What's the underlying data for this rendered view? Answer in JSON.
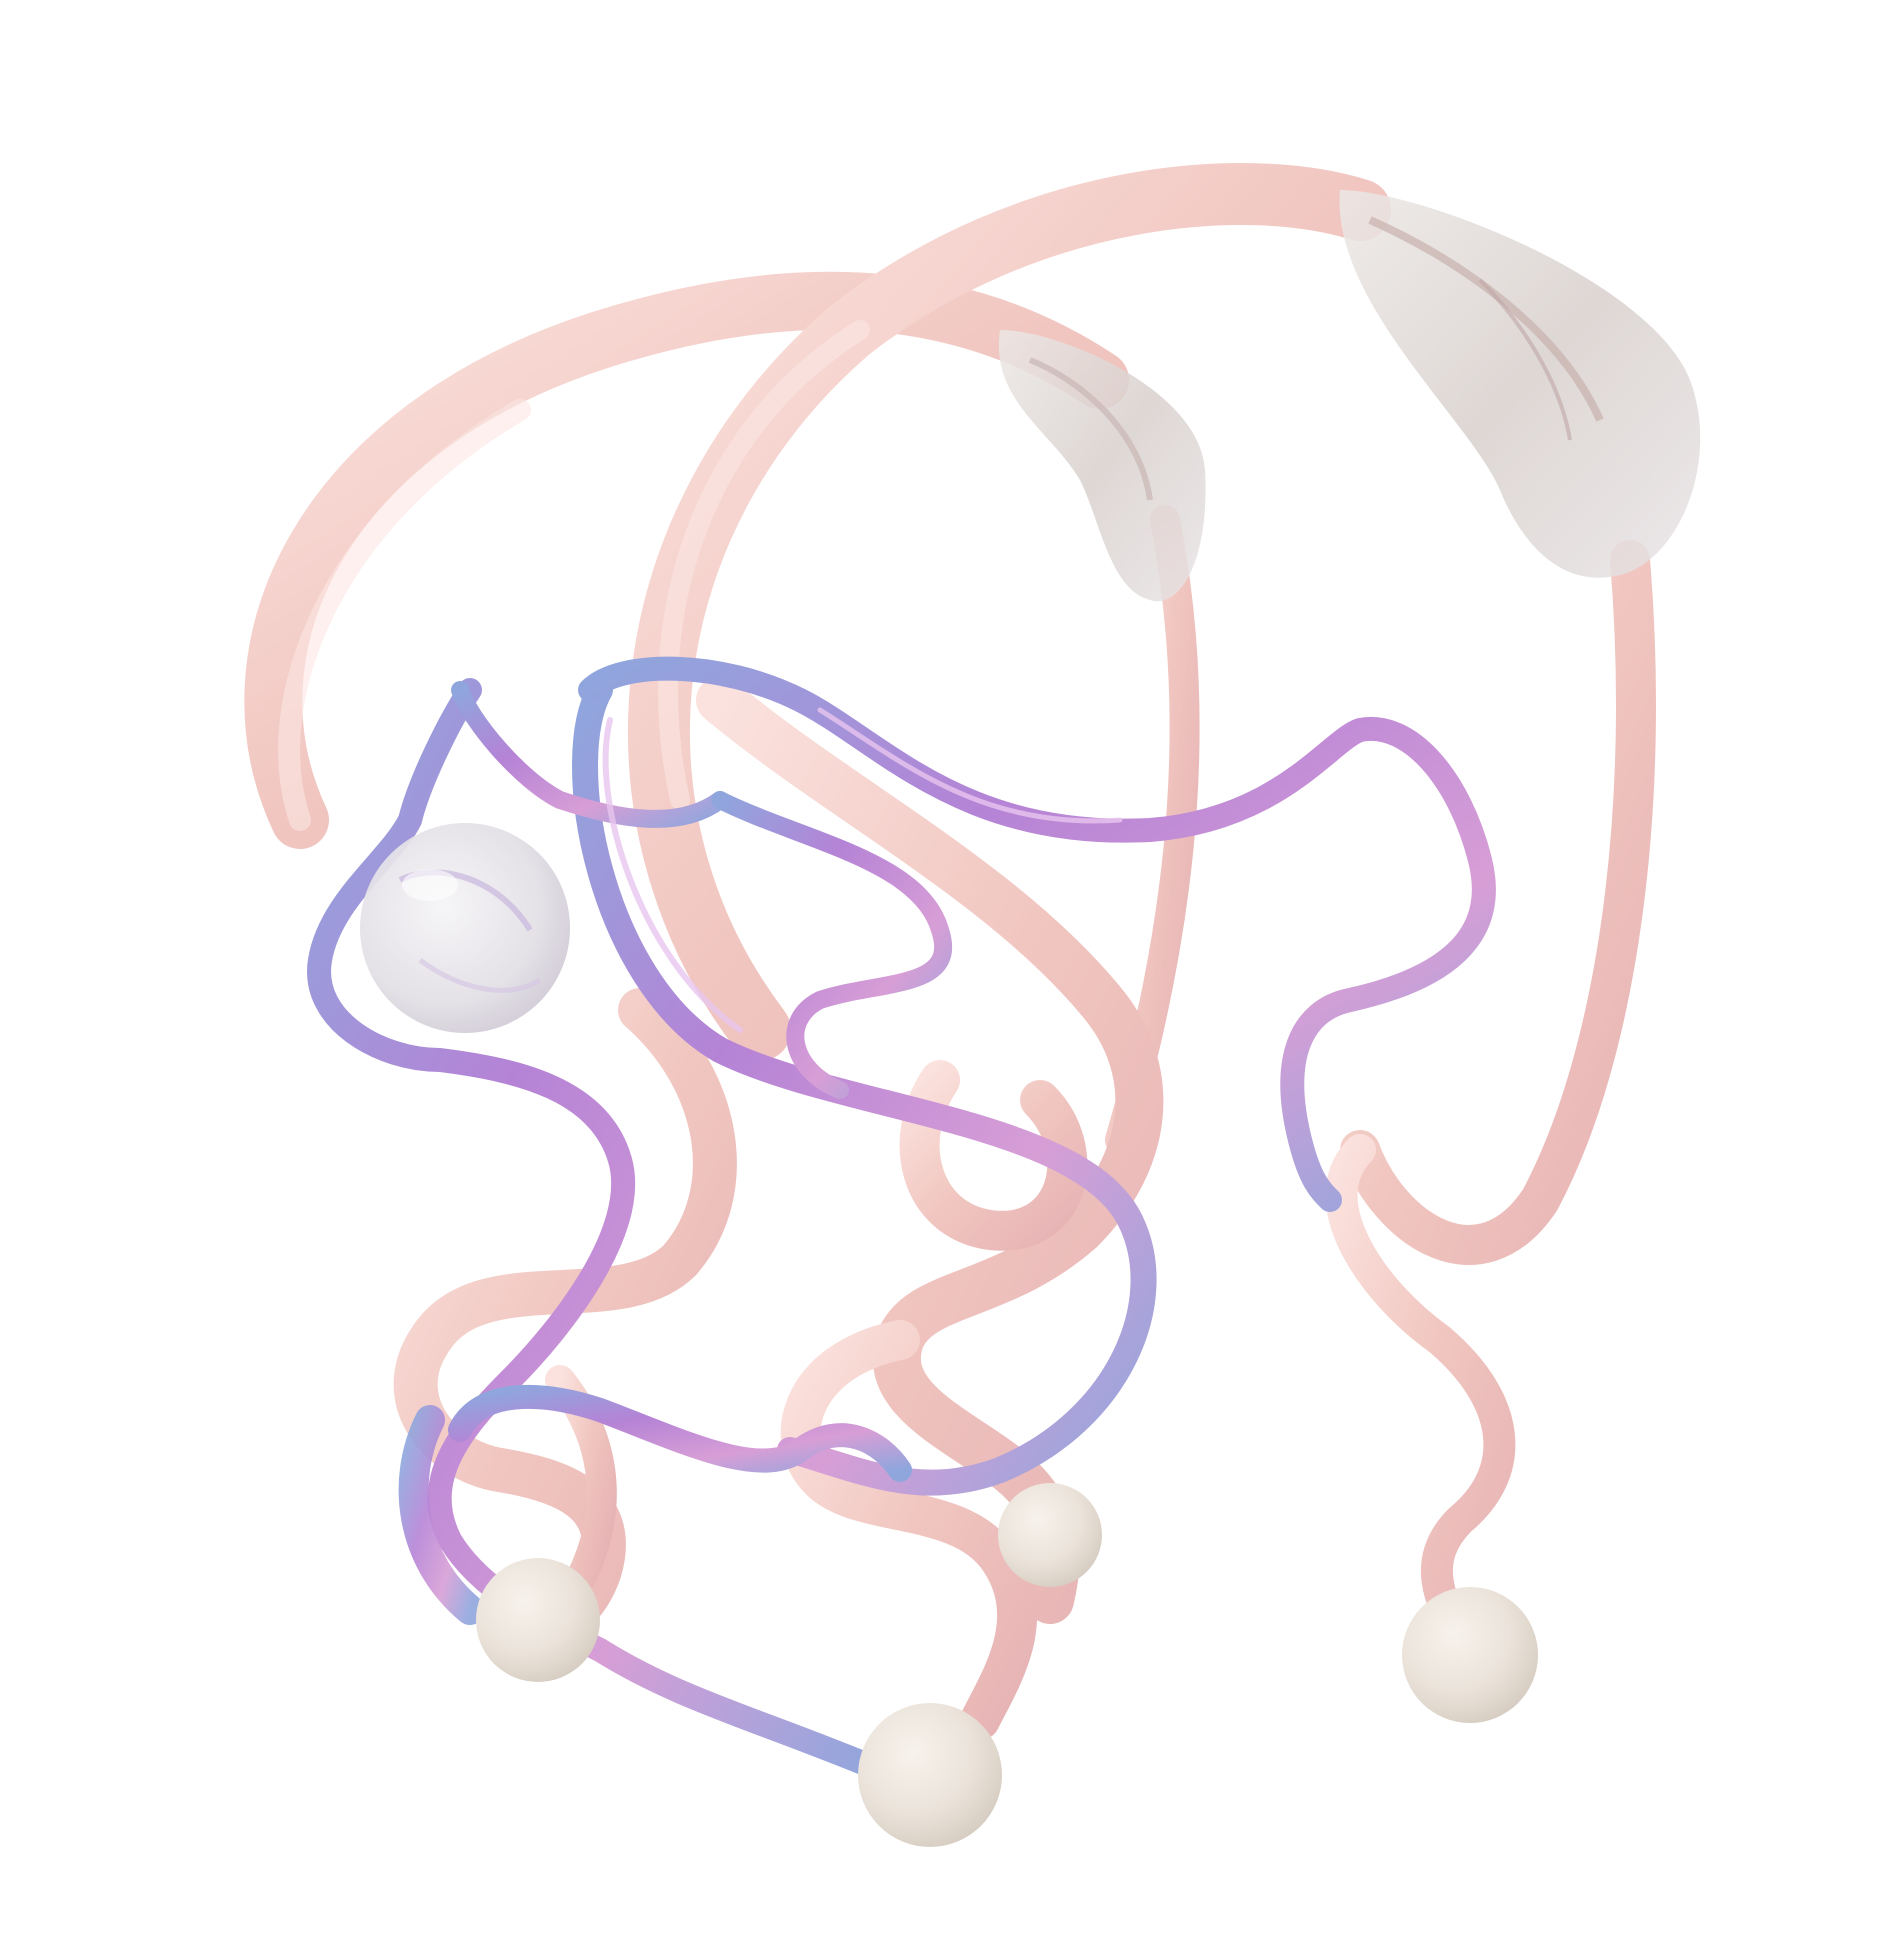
{
  "scene": {
    "subject": "abstract-3d-tendril-sculpture",
    "palette": {
      "background": "#ffffff",
      "pink_tube": "#f1c8c2",
      "pink_shadow": "#e3aeb0",
      "pink_highlight": "#fbe4e0",
      "iridescent_blue": "#8fa6dd",
      "iridescent_violet": "#b583d6",
      "iridescent_pink": "#d79ed6",
      "glass": "#e6e4e8",
      "bead": "#ede7df",
      "bead_shadow": "#d8cfc5"
    }
  }
}
